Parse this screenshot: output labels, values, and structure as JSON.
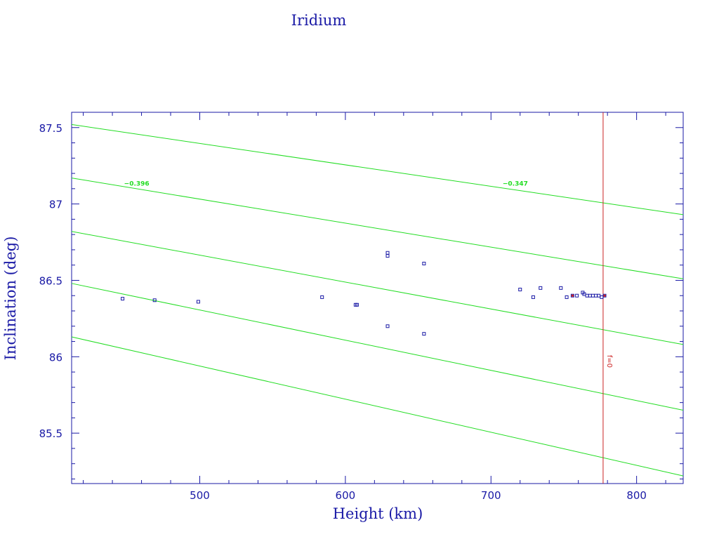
{
  "chart_data": {
    "type": "scatter",
    "title": "Iridium",
    "xlabel": "Height (km)",
    "ylabel": "Inclination (deg)",
    "xlim": [
      412,
      832
    ],
    "ylim": [
      85.17,
      87.6
    ],
    "xticks": [
      500,
      600,
      700,
      800
    ],
    "xtick_labels": [
      "500",
      "600",
      "700",
      "800"
    ],
    "yticks": [
      85.5,
      86,
      86.5,
      87,
      87.5
    ],
    "ytick_labels": [
      "85.5",
      "86",
      "86.5",
      "87",
      "87.5"
    ],
    "grid": false,
    "frame_color": "#1a1aa6",
    "series": [
      {
        "marker_color": "#1a1aa6",
        "marker": "square",
        "points": [
          {
            "x": 447,
            "y": 86.38
          },
          {
            "x": 469,
            "y": 86.37
          },
          {
            "x": 499,
            "y": 86.36
          },
          {
            "x": 584,
            "y": 86.39
          },
          {
            "x": 607,
            "y": 86.34
          },
          {
            "x": 608,
            "y": 86.34
          },
          {
            "x": 629,
            "y": 86.68
          },
          {
            "x": 629,
            "y": 86.66
          },
          {
            "x": 629,
            "y": 86.2
          },
          {
            "x": 654,
            "y": 86.61
          },
          {
            "x": 654,
            "y": 86.15
          },
          {
            "x": 720,
            "y": 86.44
          },
          {
            "x": 729,
            "y": 86.39
          },
          {
            "x": 734,
            "y": 86.45
          },
          {
            "x": 748,
            "y": 86.45
          },
          {
            "x": 752,
            "y": 86.39
          },
          {
            "x": 756,
            "y": 86.4
          },
          {
            "x": 759,
            "y": 86.4
          },
          {
            "x": 763,
            "y": 86.42
          },
          {
            "x": 764,
            "y": 86.41
          },
          {
            "x": 766,
            "y": 86.4
          },
          {
            "x": 768,
            "y": 86.4
          },
          {
            "x": 770,
            "y": 86.4
          },
          {
            "x": 772,
            "y": 86.4
          },
          {
            "x": 774,
            "y": 86.4
          },
          {
            "x": 776,
            "y": 86.39
          },
          {
            "x": 778,
            "y": 86.4
          }
        ]
      }
    ],
    "red_points": {
      "color": "#cc2222",
      "points": [
        {
          "x": 756,
          "y": 86.4
        },
        {
          "x": 778,
          "y": 86.4
        }
      ]
    },
    "reference_lines": {
      "color": "#22dd22",
      "x_span": [
        412,
        832
      ],
      "lines": [
        {
          "y_start": 87.52,
          "y_end": 86.93
        },
        {
          "y_start": 87.17,
          "y_end": 86.51
        },
        {
          "y_start": 86.82,
          "y_end": 86.08
        },
        {
          "y_start": 86.48,
          "y_end": 85.65
        },
        {
          "y_start": 86.13,
          "y_end": 85.22
        }
      ],
      "labels": [
        {
          "text": "−0.396",
          "x": 448,
          "y": 87.12
        },
        {
          "text": "−0.347",
          "x": 708,
          "y": 87.12
        }
      ]
    },
    "vertical_line": {
      "x": 777,
      "color": "#cc2222",
      "label": "f=0",
      "label_y": 85.97
    }
  }
}
